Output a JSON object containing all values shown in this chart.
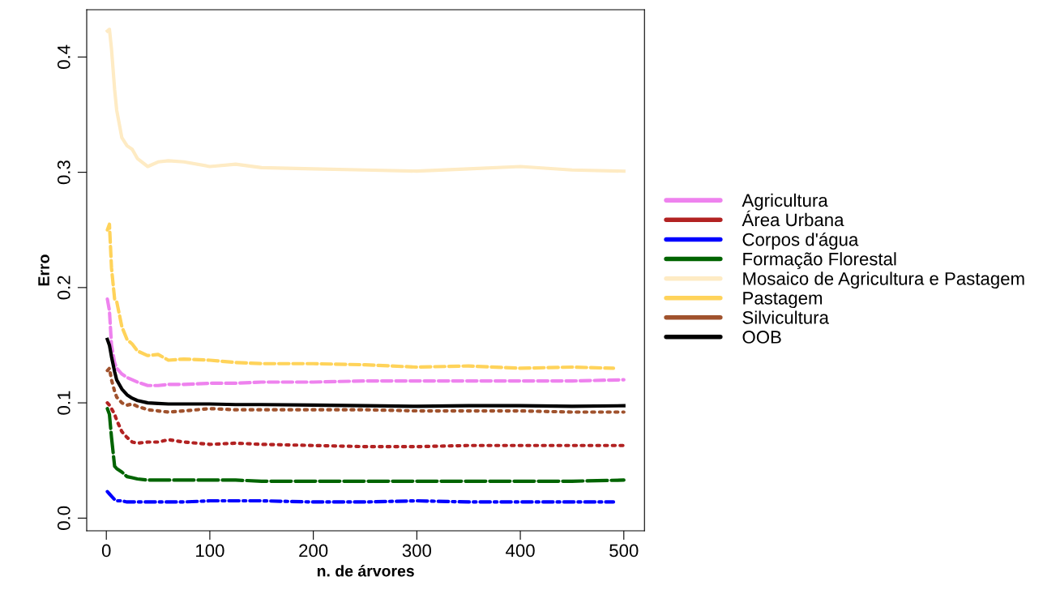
{
  "chart_data": {
    "type": "line",
    "xlabel": "n. de árvores",
    "ylabel": "Erro",
    "x": [
      1,
      3,
      5,
      8,
      10,
      15,
      20,
      25,
      30,
      40,
      50,
      60,
      75,
      100,
      125,
      150,
      200,
      250,
      300,
      350,
      400,
      450,
      500
    ],
    "series": [
      {
        "name": "Agricultura",
        "color": "#ee82ee",
        "line_style": "dashed",
        "values": [
          0.19,
          0.18,
          0.15,
          0.135,
          0.13,
          0.125,
          0.122,
          0.12,
          0.118,
          0.115,
          0.115,
          0.116,
          0.116,
          0.117,
          0.117,
          0.118,
          0.118,
          0.119,
          0.119,
          0.119,
          0.119,
          0.119,
          0.12
        ]
      },
      {
        "name": "Área Urbana",
        "color": "#b22222",
        "line_style": "dotted",
        "values": [
          0.1,
          0.098,
          0.095,
          0.09,
          0.085,
          0.075,
          0.07,
          0.066,
          0.065,
          0.066,
          0.066,
          0.068,
          0.066,
          0.064,
          0.065,
          0.064,
          0.063,
          0.062,
          0.062,
          0.063,
          0.063,
          0.063,
          0.063
        ]
      },
      {
        "name": "Corpos d'água",
        "color": "#0000ff",
        "line_style": "dashdot",
        "x": [
          1,
          3,
          5,
          8,
          10,
          15,
          20,
          25,
          30,
          40,
          50,
          60,
          75,
          100,
          125,
          150,
          200,
          250,
          300,
          350,
          400,
          450,
          490
        ],
        "values": [
          0.023,
          0.021,
          0.019,
          0.016,
          0.015,
          0.015,
          0.014,
          0.014,
          0.014,
          0.014,
          0.014,
          0.014,
          0.014,
          0.015,
          0.015,
          0.015,
          0.014,
          0.014,
          0.015,
          0.014,
          0.014,
          0.014,
          0.014
        ]
      },
      {
        "name": "Formação Florestal",
        "color": "#006400",
        "line_style": "longdash",
        "values": [
          0.095,
          0.09,
          0.07,
          0.045,
          0.043,
          0.04,
          0.036,
          0.035,
          0.034,
          0.033,
          0.033,
          0.033,
          0.033,
          0.033,
          0.033,
          0.032,
          0.032,
          0.032,
          0.032,
          0.032,
          0.032,
          0.032,
          0.033
        ]
      },
      {
        "name": "Mosaico de Agricultura e Pastagem",
        "color": "#feebc4",
        "line_style": "solid",
        "values": [
          0.4225,
          0.424,
          0.407,
          0.372,
          0.354,
          0.33,
          0.323,
          0.32,
          0.312,
          0.305,
          0.309,
          0.31,
          0.309,
          0.305,
          0.307,
          0.304,
          0.303,
          0.302,
          0.301,
          0.303,
          0.305,
          0.302,
          0.301
        ]
      },
      {
        "name": "Pastagem",
        "color": "#ffd35a",
        "line_style": "dashed",
        "x": [
          1,
          3,
          5,
          8,
          10,
          15,
          20,
          25,
          30,
          40,
          50,
          60,
          75,
          100,
          125,
          150,
          200,
          250,
          300,
          350,
          400,
          450,
          490
        ],
        "values": [
          0.25,
          0.255,
          0.217,
          0.19,
          0.188,
          0.166,
          0.155,
          0.151,
          0.145,
          0.141,
          0.142,
          0.137,
          0.138,
          0.137,
          0.135,
          0.134,
          0.134,
          0.133,
          0.131,
          0.132,
          0.13,
          0.131,
          0.13
        ]
      },
      {
        "name": "Silvicultura",
        "color": "#a0522d",
        "line_style": "dotted",
        "values": [
          0.128,
          0.13,
          0.12,
          0.11,
          0.105,
          0.1,
          0.098,
          0.099,
          0.097,
          0.094,
          0.093,
          0.092,
          0.093,
          0.095,
          0.094,
          0.094,
          0.094,
          0.094,
          0.093,
          0.093,
          0.093,
          0.092,
          0.092
        ]
      },
      {
        "name": "OOB",
        "color": "#000000",
        "line_style": "solid",
        "values": [
          0.155,
          0.15,
          0.14,
          0.127,
          0.12,
          0.112,
          0.107,
          0.104,
          0.102,
          0.1,
          0.0995,
          0.099,
          0.099,
          0.099,
          0.0985,
          0.0985,
          0.098,
          0.0975,
          0.097,
          0.0975,
          0.0975,
          0.097,
          0.0975
        ]
      }
    ],
    "xlim": [
      -18.96,
      519.96
    ],
    "xticks": [
      0,
      100,
      200,
      300,
      400,
      500
    ],
    "ylim": [
      -0.011,
      0.441
    ],
    "yticks": [
      {
        "value": 0,
        "label": "0.0"
      },
      {
        "value": 0.1,
        "label": "0.1"
      },
      {
        "value": 0.2,
        "label": "0.2"
      },
      {
        "value": 0.3,
        "label": "0.3"
      },
      {
        "value": 0.4,
        "label": "0.4"
      }
    ],
    "grid": false,
    "legend": "right"
  }
}
